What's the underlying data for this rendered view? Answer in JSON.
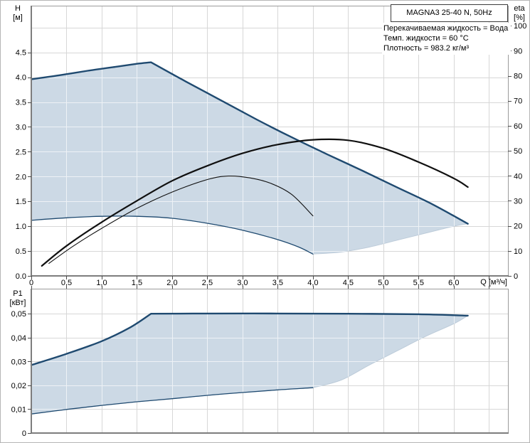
{
  "title_box": {
    "text": "MAGNA3 25-40 N, 50Hz"
  },
  "info_box": {
    "lines": [
      "Перекачиваемая жидкость = Вода",
      "Темп. жидкости = 60 °C",
      "Плотность = 983.2 кг/м³"
    ]
  },
  "colors": {
    "background": "#ffffff",
    "envelope_fill": "#ccd9e5",
    "envelope_edge": "#bccbd9",
    "curve_primary": "#1f4a70",
    "efficiency_curve": "#101010",
    "grid": "#d7d7d7",
    "grid_on_fill": "#eef2f6",
    "frame_light": "#9b9b9b",
    "frame_dark": "#7d7d7d",
    "tick": "#4a4a4a",
    "text": "#000000"
  },
  "chart_data": [
    {
      "type": "line",
      "name": "head-efficiency-panel",
      "x_axis": {
        "label": "Q [м³/ч]",
        "range": [
          0,
          6.77
        ],
        "tick_values": [
          0,
          0.5,
          1,
          1.5,
          2,
          2.5,
          3,
          3.5,
          4,
          4.5,
          5,
          5.5,
          6
        ],
        "tick_labels": [
          "0",
          "0,5",
          "1,0",
          "1,5",
          "2,0",
          "2,5",
          "3,0",
          "3,5",
          "4,0",
          "4,5",
          "5,0",
          "5,5",
          "6,0"
        ],
        "grid_values": [
          0.5,
          1,
          1.5,
          2,
          2.5,
          3,
          3.5,
          4,
          4.5,
          5,
          5.5,
          6,
          6.5
        ],
        "show_labels": true
      },
      "y_left": {
        "label_lines": [
          "H",
          "[м]"
        ],
        "range": [
          0,
          5.44
        ],
        "tick_values": [
          0,
          0.5,
          1,
          1.5,
          2,
          2.5,
          3,
          3.5,
          4,
          4.5
        ],
        "tick_labels": [
          "0.0",
          "0.5",
          "1.0",
          "1.5",
          "2.0",
          "2.5",
          "3.0",
          "3.5",
          "4.0",
          "4.5"
        ],
        "grid_values": [
          0.5,
          1,
          1.5,
          2,
          2.5,
          3,
          3.5,
          4,
          4.5,
          5
        ]
      },
      "y_right": {
        "label_lines": [
          "eta",
          "[%]"
        ],
        "range": [
          0,
          108
        ],
        "tick_values": [
          0,
          10,
          20,
          30,
          40,
          50,
          60,
          70,
          80,
          90,
          100
        ],
        "tick_labels": [
          "0",
          "10",
          "20",
          "30",
          "40",
          "50",
          "60",
          "70",
          "80",
          "90",
          "100"
        ]
      },
      "envelope": {
        "upper": "head-max-speed",
        "lower": "head-min-speed",
        "right_boundary": [
          [
            4.0,
            0.44
          ],
          [
            4.4,
            0.48
          ],
          [
            4.8,
            0.58
          ],
          [
            5.2,
            0.72
          ],
          [
            5.6,
            0.86
          ],
          [
            6.0,
            1.0
          ],
          [
            6.2,
            1.05
          ]
        ]
      },
      "series": [
        {
          "name": "head-max-speed",
          "axis": "left",
          "role": "envelope-upper",
          "color_key": "curve_primary",
          "width": 2.4,
          "segments": [
            [
              [
                0,
                3.96
              ],
              [
                0.4,
                4.04
              ],
              [
                0.8,
                4.13
              ],
              [
                1.2,
                4.21
              ],
              [
                1.5,
                4.27
              ],
              [
                1.7,
                4.3
              ]
            ],
            [
              [
                1.7,
                4.3
              ],
              [
                2.2,
                3.91
              ],
              [
                2.7,
                3.53
              ],
              [
                3.2,
                3.15
              ],
              [
                3.7,
                2.79
              ],
              [
                4.2,
                2.45
              ],
              [
                4.7,
                2.12
              ],
              [
                5.2,
                1.78
              ],
              [
                5.7,
                1.44
              ],
              [
                6.2,
                1.05
              ]
            ]
          ]
        },
        {
          "name": "head-min-speed",
          "axis": "left",
          "role": "envelope-lower",
          "color_key": "curve_primary",
          "width": 1.3,
          "segments": [
            [
              [
                0,
                1.12
              ],
              [
                0.5,
                1.17
              ],
              [
                1.0,
                1.2
              ],
              [
                1.5,
                1.2
              ],
              [
                2.0,
                1.16
              ],
              [
                2.5,
                1.06
              ],
              [
                3.0,
                0.92
              ],
              [
                3.5,
                0.73
              ],
              [
                3.8,
                0.58
              ],
              [
                4.0,
                0.44
              ]
            ]
          ]
        },
        {
          "name": "eta-max-speed",
          "axis": "right",
          "role": "efficiency",
          "color_key": "efficiency_curve",
          "width": 2.2,
          "segments": [
            [
              [
                0.15,
                4
              ],
              [
                0.5,
                12
              ],
              [
                1.0,
                21.5
              ],
              [
                1.5,
                30
              ],
              [
                2.0,
                38
              ],
              [
                2.5,
                44
              ],
              [
                3.0,
                49
              ],
              [
                3.5,
                52.5
              ],
              [
                4.0,
                54.4
              ],
              [
                4.5,
                54.2
              ],
              [
                5.0,
                51
              ],
              [
                5.5,
                45.5
              ],
              [
                6.0,
                39
              ],
              [
                6.2,
                35.5
              ]
            ]
          ]
        },
        {
          "name": "eta-min-speed",
          "axis": "right",
          "role": "efficiency",
          "color_key": "efficiency_curve",
          "width": 1.1,
          "segments": [
            [
              [
                0.25,
                5
              ],
              [
                0.6,
                12
              ],
              [
                1.0,
                19
              ],
              [
                1.5,
                27
              ],
              [
                2.0,
                33.5
              ],
              [
                2.5,
                38.5
              ],
              [
                2.8,
                39.9
              ],
              [
                3.1,
                39.2
              ],
              [
                3.4,
                37
              ],
              [
                3.7,
                32.5
              ],
              [
                4.0,
                24
              ]
            ]
          ]
        }
      ]
    },
    {
      "type": "line",
      "name": "power-panel",
      "x_axis": {
        "label": "",
        "range": [
          0,
          6.77
        ],
        "tick_values": [
          0,
          0.5,
          1,
          1.5,
          2,
          2.5,
          3,
          3.5,
          4,
          4.5,
          5,
          5.5,
          6
        ],
        "tick_labels": [],
        "grid_values": [
          0.5,
          1,
          1.5,
          2,
          2.5,
          3,
          3.5,
          4,
          4.5,
          5,
          5.5,
          6,
          6.5
        ],
        "show_labels": false
      },
      "y_left": {
        "label_lines": [
          "P1",
          "[кВт]"
        ],
        "range": [
          0,
          0.0605
        ],
        "tick_values": [
          0,
          0.01,
          0.02,
          0.03,
          0.04,
          0.05
        ],
        "tick_labels": [
          "0",
          "0,01",
          "0,02",
          "0,03",
          "0,04",
          "0,05"
        ],
        "grid_values": [
          0.01,
          0.02,
          0.03,
          0.04,
          0.05
        ]
      },
      "envelope": {
        "upper": "p1-max-speed",
        "lower": "p1-min-speed",
        "right_boundary": [
          [
            4.0,
            0.019
          ],
          [
            4.4,
            0.0222
          ],
          [
            4.8,
            0.0285
          ],
          [
            5.2,
            0.0345
          ],
          [
            5.6,
            0.0405
          ],
          [
            6.0,
            0.0458
          ],
          [
            6.2,
            0.0492
          ]
        ]
      },
      "series": [
        {
          "name": "p1-max-speed",
          "axis": "left",
          "role": "envelope-upper",
          "color_key": "curve_primary",
          "width": 2.4,
          "segments": [
            [
              [
                0,
                0.0285
              ],
              [
                0.5,
                0.0332
              ],
              [
                1.0,
                0.0385
              ],
              [
                1.4,
                0.0442
              ],
              [
                1.7,
                0.05
              ]
            ],
            [
              [
                1.7,
                0.05
              ],
              [
                2.5,
                0.0501
              ],
              [
                3.5,
                0.0501
              ],
              [
                4.5,
                0.05
              ],
              [
                5.5,
                0.0498
              ],
              [
                6.2,
                0.0492
              ]
            ]
          ]
        },
        {
          "name": "p1-min-speed",
          "axis": "left",
          "role": "envelope-lower",
          "color_key": "curve_primary",
          "width": 1.3,
          "segments": [
            [
              [
                0,
                0.008
              ],
              [
                0.5,
                0.0099
              ],
              [
                1.0,
                0.0116
              ],
              [
                1.5,
                0.0131
              ],
              [
                2.0,
                0.0144
              ],
              [
                2.5,
                0.0158
              ],
              [
                3.0,
                0.017
              ],
              [
                3.5,
                0.0181
              ],
              [
                4.0,
                0.019
              ]
            ]
          ]
        }
      ]
    }
  ]
}
